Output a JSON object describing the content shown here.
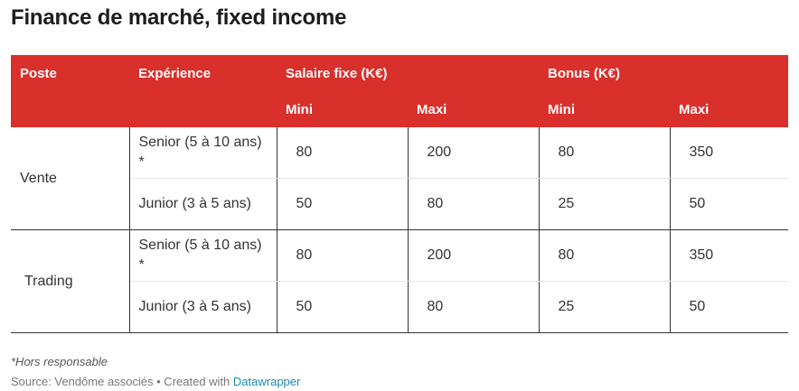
{
  "title": "Finance de marché, fixed income",
  "colors": {
    "header_bg": "#d9302c",
    "header_text": "#ffffff",
    "link": "#1a8bb5"
  },
  "headers": {
    "poste": "Poste",
    "experience": "Expérience",
    "salaire": "Salaire fixe (K€)",
    "bonus": "Bonus (K€)",
    "mini": "Mini",
    "maxi": "Maxi"
  },
  "chart_data": {
    "type": "table",
    "title": "Finance de marché, fixed income",
    "columns": [
      "Poste",
      "Expérience",
      "Salaire fixe Mini (K€)",
      "Salaire fixe Maxi (K€)",
      "Bonus Mini (K€)",
      "Bonus Maxi (K€)"
    ],
    "groups": [
      {
        "poste": "Vente",
        "rows": [
          {
            "experience": "Senior (5 à 10 ans) *",
            "salaire_mini": 80,
            "salaire_maxi": 200,
            "bonus_mini": 80,
            "bonus_maxi": 350
          },
          {
            "experience": "Junior (3 à 5 ans)",
            "salaire_mini": 50,
            "salaire_maxi": 80,
            "bonus_mini": 25,
            "bonus_maxi": 50
          }
        ]
      },
      {
        "poste": "Trading",
        "rows": [
          {
            "experience": "Senior (5 à 10 ans) *",
            "salaire_mini": 80,
            "salaire_maxi": 200,
            "bonus_mini": 80,
            "bonus_maxi": 350
          },
          {
            "experience": "Junior (3 à 5 ans)",
            "salaire_mini": 50,
            "salaire_maxi": 80,
            "bonus_mini": 25,
            "bonus_maxi": 50
          }
        ]
      }
    ]
  },
  "footnote": "*Hors responsable",
  "source": {
    "prefix": "Source: Vendôme associés • Created with ",
    "link": "Datawrapper"
  }
}
